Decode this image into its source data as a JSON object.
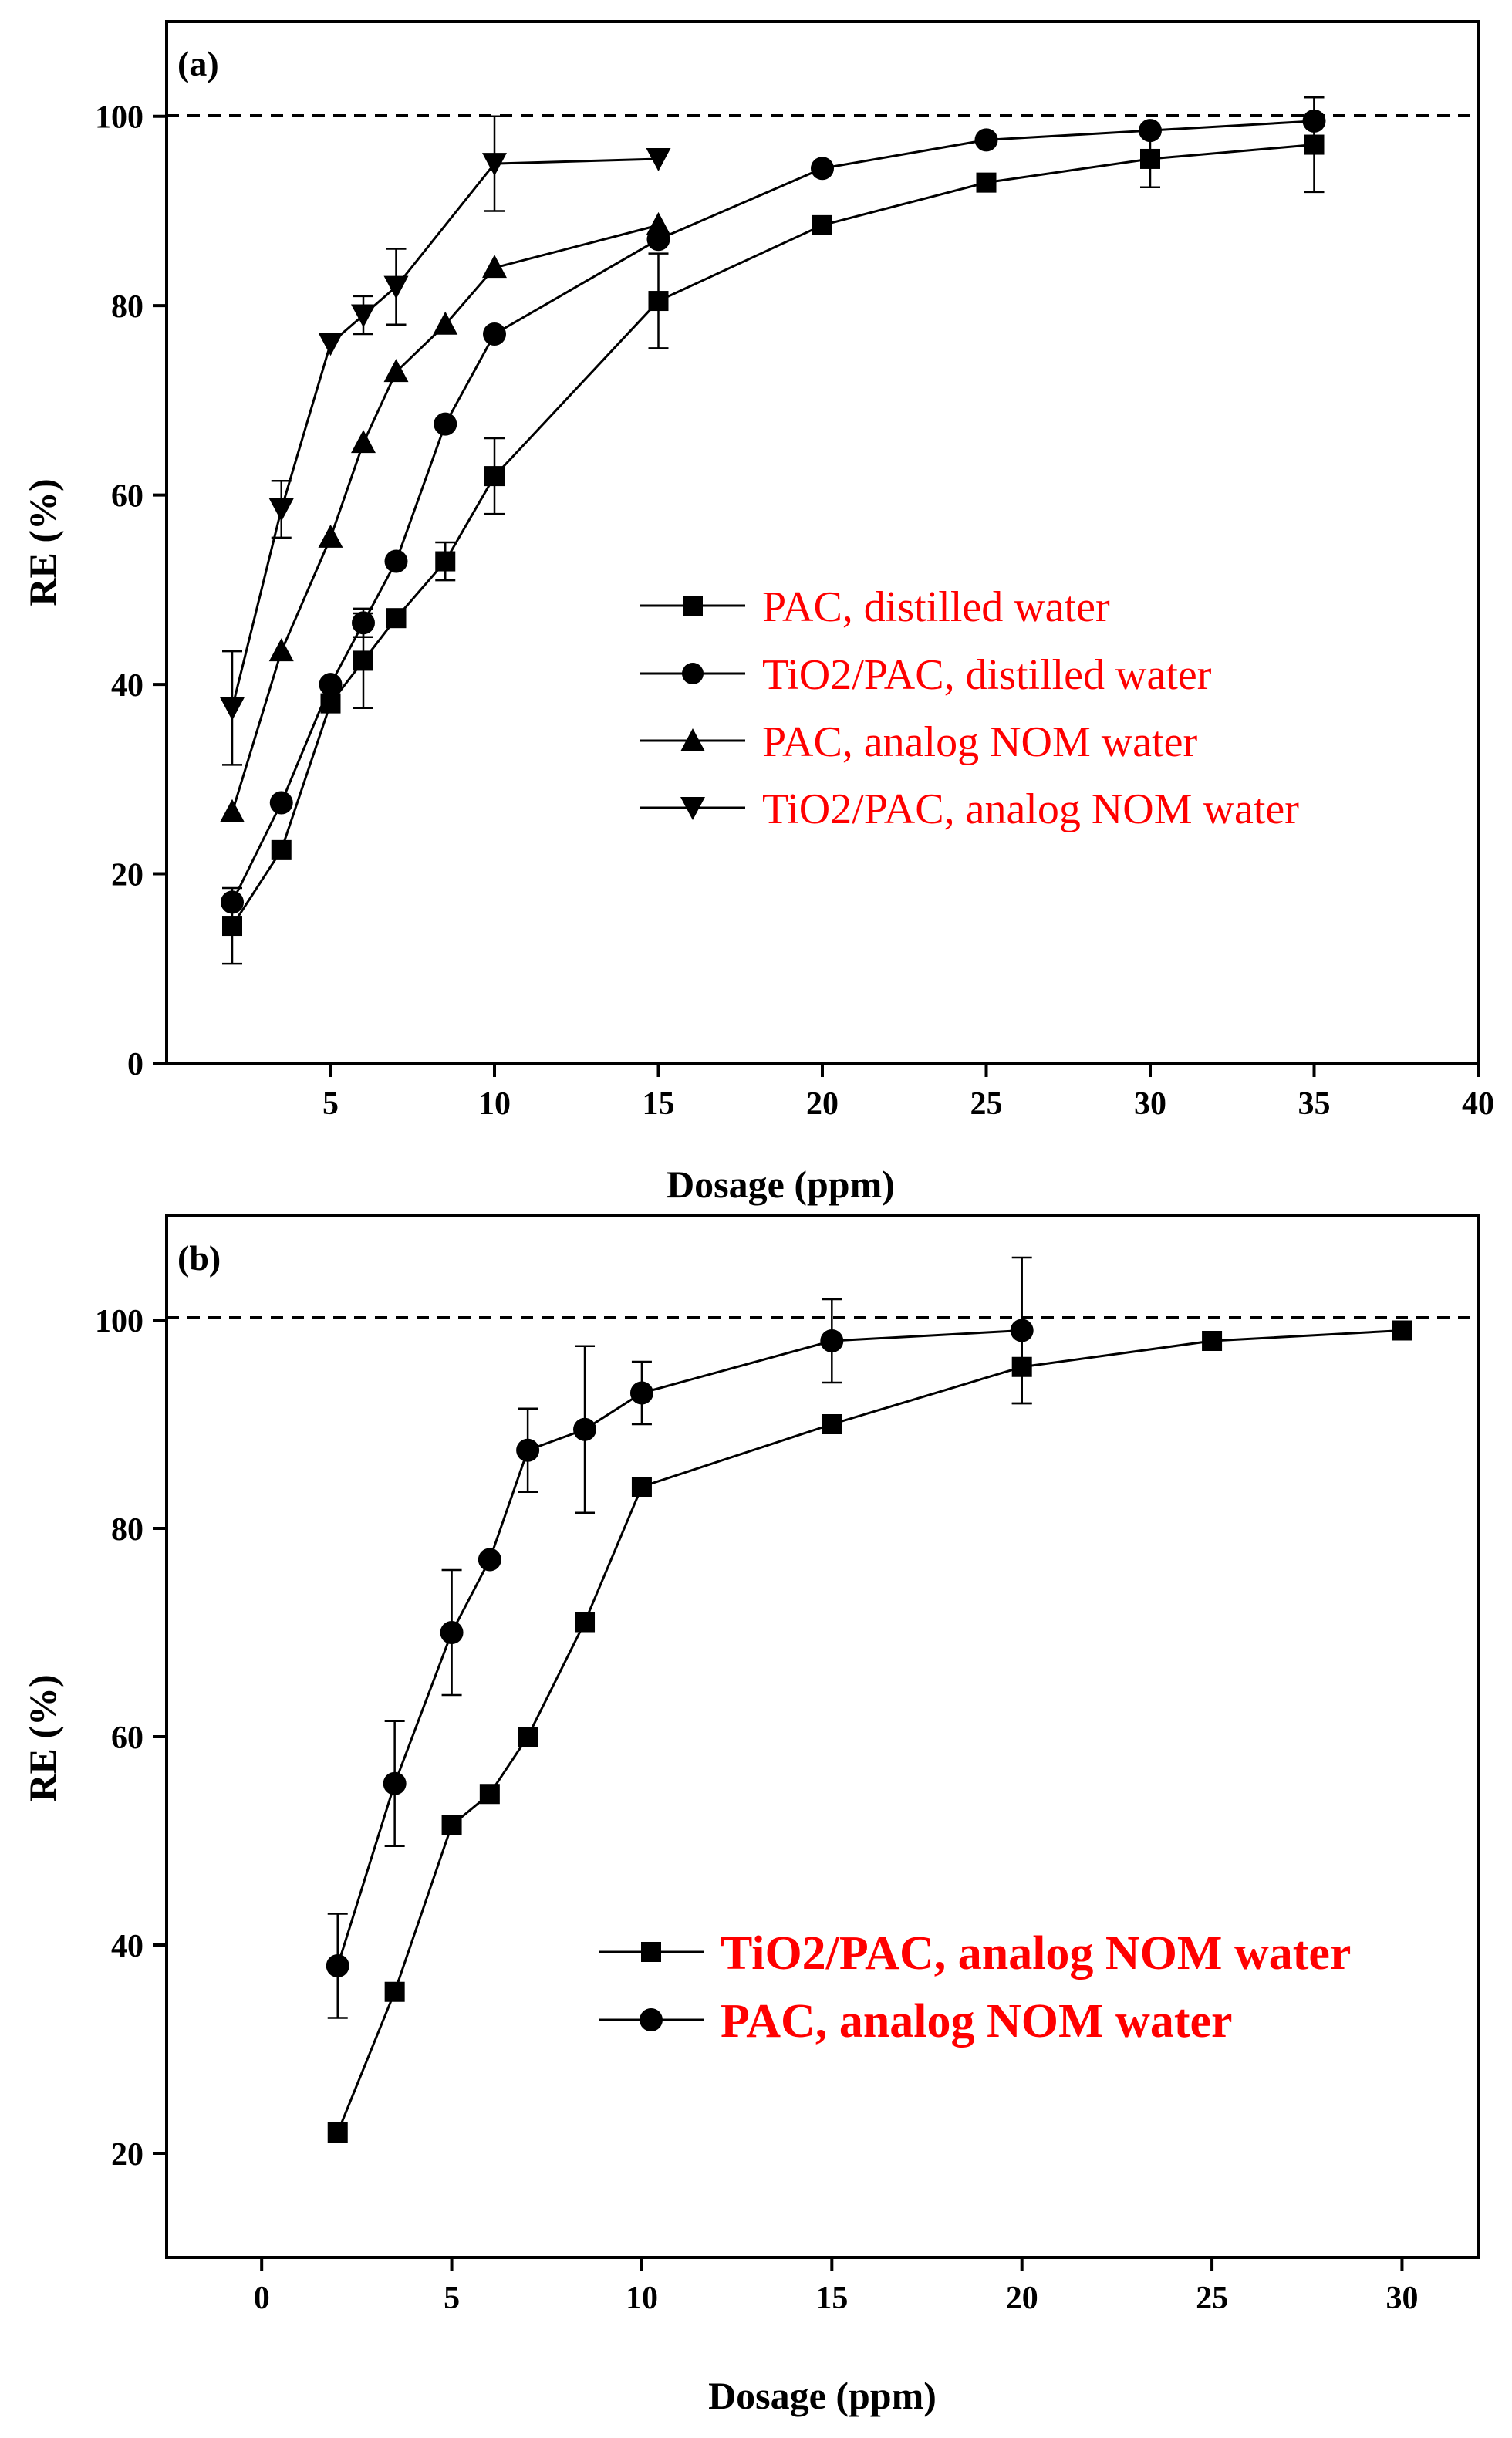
{
  "chart_data": [
    {
      "panel": "(a)",
      "type": "line",
      "xlabel": "Dosage (ppm)",
      "ylabel": "RE (%)",
      "xlim": [
        0,
        40
      ],
      "ylim": [
        0,
        110
      ],
      "xticks": [
        5,
        10,
        15,
        20,
        25,
        30,
        35,
        40
      ],
      "yticks": [
        0,
        20,
        40,
        60,
        80,
        100
      ],
      "reference_line": 100,
      "legend_position": "center-right",
      "series": [
        {
          "name": "PAC, distilled water",
          "marker": "square",
          "points": [
            {
              "x": 2,
              "y": 14.5,
              "err": 4
            },
            {
              "x": 3.5,
              "y": 22.5,
              "err": 0
            },
            {
              "x": 5,
              "y": 38,
              "err": 0
            },
            {
              "x": 6,
              "y": 42.5,
              "err": 5
            },
            {
              "x": 7,
              "y": 47,
              "err": 0
            },
            {
              "x": 8.5,
              "y": 53,
              "err": 2
            },
            {
              "x": 10,
              "y": 62,
              "err": 4
            },
            {
              "x": 15,
              "y": 80.5,
              "err": 5
            },
            {
              "x": 20,
              "y": 88.5,
              "err": 0
            },
            {
              "x": 25,
              "y": 93,
              "err": 0
            },
            {
              "x": 30,
              "y": 95.5,
              "err": 3
            },
            {
              "x": 35,
              "y": 97,
              "err": 5
            }
          ]
        },
        {
          "name": "TiO2/PAC, distilled water",
          "marker": "circle",
          "points": [
            {
              "x": 2,
              "y": 17,
              "err": 0
            },
            {
              "x": 3.5,
              "y": 27.5,
              "err": 0
            },
            {
              "x": 5,
              "y": 40,
              "err": 0
            },
            {
              "x": 6,
              "y": 46.5,
              "err": 1.5
            },
            {
              "x": 7,
              "y": 53,
              "err": 0
            },
            {
              "x": 8.5,
              "y": 67.5,
              "err": 0
            },
            {
              "x": 10,
              "y": 77,
              "err": 0
            },
            {
              "x": 15,
              "y": 87,
              "err": 0
            },
            {
              "x": 20,
              "y": 94.5,
              "err": 0
            },
            {
              "x": 25,
              "y": 97.5,
              "err": 0
            },
            {
              "x": 30,
              "y": 98.5,
              "err": 0
            },
            {
              "x": 35,
              "y": 99.5,
              "err": 2.5
            }
          ]
        },
        {
          "name": "PAC, analog NOM water",
          "marker": "triangle-up",
          "points": [
            {
              "x": 2,
              "y": 26.5,
              "err": 0
            },
            {
              "x": 3.5,
              "y": 43.5,
              "err": 0
            },
            {
              "x": 5,
              "y": 55.5,
              "err": 0
            },
            {
              "x": 6,
              "y": 65.5,
              "err": 0
            },
            {
              "x": 7,
              "y": 73,
              "err": 0
            },
            {
              "x": 8.5,
              "y": 78,
              "err": 0
            },
            {
              "x": 10,
              "y": 84,
              "err": 0
            },
            {
              "x": 15,
              "y": 88.5,
              "err": 0
            }
          ]
        },
        {
          "name": "TiO2/PAC, analog NOM water",
          "marker": "triangle-down",
          "points": [
            {
              "x": 2,
              "y": 37.5,
              "err": 6
            },
            {
              "x": 3.5,
              "y": 58.5,
              "err": 3
            },
            {
              "x": 5,
              "y": 76,
              "err": 0
            },
            {
              "x": 6,
              "y": 79,
              "err": 2
            },
            {
              "x": 7,
              "y": 82,
              "err": 4
            },
            {
              "x": 10,
              "y": 95,
              "err": 5
            },
            {
              "x": 15,
              "y": 95.5,
              "err": 0
            }
          ]
        }
      ]
    },
    {
      "panel": "(b)",
      "type": "line",
      "xlabel": "Dosage (ppm)",
      "ylabel": "RE (%)",
      "xlim": [
        -2.5,
        32
      ],
      "ylim": [
        10,
        110
      ],
      "xticks": [
        0,
        5,
        10,
        15,
        20,
        25,
        30
      ],
      "yticks": [
        20,
        40,
        60,
        80,
        100
      ],
      "reference_line": 100,
      "legend_position": "bottom-right",
      "series": [
        {
          "name": "TiO2/PAC, analog NOM water",
          "marker": "square",
          "points": [
            {
              "x": 2,
              "y": 22,
              "err": 0
            },
            {
              "x": 3.5,
              "y": 35.5,
              "err": 0
            },
            {
              "x": 5,
              "y": 51.5,
              "err": 0
            },
            {
              "x": 6,
              "y": 54.5,
              "err": 0
            },
            {
              "x": 7,
              "y": 60,
              "err": 0
            },
            {
              "x": 8.5,
              "y": 71,
              "err": 0
            },
            {
              "x": 10,
              "y": 84,
              "err": 0
            },
            {
              "x": 15,
              "y": 90,
              "err": 0
            },
            {
              "x": 20,
              "y": 95.5,
              "err": 3.5
            },
            {
              "x": 25,
              "y": 98,
              "err": 0
            },
            {
              "x": 30,
              "y": 99,
              "err": 0
            }
          ]
        },
        {
          "name": "PAC, analog NOM water",
          "marker": "circle",
          "points": [
            {
              "x": 2,
              "y": 38,
              "err": 5
            },
            {
              "x": 3.5,
              "y": 55.5,
              "err": 6
            },
            {
              "x": 5,
              "y": 70,
              "err": 6
            },
            {
              "x": 6,
              "y": 77,
              "err": 0
            },
            {
              "x": 7,
              "y": 87.5,
              "err": 4
            },
            {
              "x": 8.5,
              "y": 89.5,
              "err": 8
            },
            {
              "x": 10,
              "y": 93,
              "err": 3
            },
            {
              "x": 15,
              "y": 98,
              "err": 4
            },
            {
              "x": 20,
              "y": 99,
              "err": 7
            }
          ]
        }
      ]
    }
  ]
}
